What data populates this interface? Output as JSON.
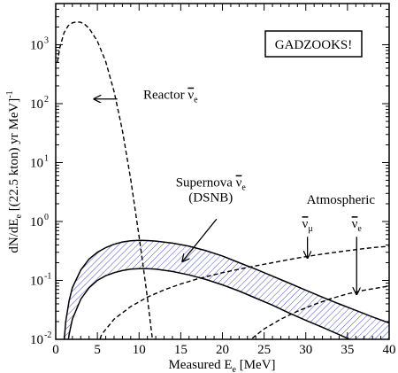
{
  "chart_data": {
    "type": "line",
    "x_axis": {
      "title_main": "Measured E",
      "title_sub": "e",
      "title_unit": "[MeV]",
      "range": [
        0,
        40
      ],
      "tick_values": [
        0,
        5,
        10,
        15,
        20,
        25,
        30,
        35,
        40
      ],
      "tick_labels": [
        "0",
        "5",
        "10",
        "15",
        "20",
        "25",
        "30",
        "35",
        "40"
      ],
      "minor_step": 1
    },
    "y_axis": {
      "title_part1": "dN/dE",
      "title_sub": "e",
      "title_part2": "[(22.5 kton) yr MeV]",
      "title_sup": "-1",
      "scale": "log",
      "range": [
        0.01,
        5000
      ],
      "tick_values": [
        0.01,
        0.1,
        1,
        10,
        100,
        1000
      ],
      "tick_bases": [
        "10",
        "10",
        "10",
        "10",
        "10",
        "10"
      ],
      "tick_exponents": [
        "-2",
        "-1",
        "0",
        "1",
        "2",
        "3"
      ]
    },
    "grid": false,
    "boxed_label": "GADZOOKS!",
    "series": [
      {
        "name": "Reactor ν̄e",
        "style": "dashed",
        "points": [
          [
            0.2,
            500
          ],
          [
            0.5,
            900
          ],
          [
            1,
            1600
          ],
          [
            1.5,
            2100
          ],
          [
            2,
            2350
          ],
          [
            2.5,
            2450
          ],
          [
            3,
            2400
          ],
          [
            3.5,
            2200
          ],
          [
            4,
            1900
          ],
          [
            5,
            1150
          ],
          [
            6,
            520
          ],
          [
            7,
            160
          ],
          [
            8,
            35
          ],
          [
            9,
            5.2
          ],
          [
            10,
            0.55
          ],
          [
            10.5,
            0.17
          ],
          [
            11,
            0.05
          ],
          [
            11.5,
            0.013
          ],
          [
            11.8,
            0.006
          ]
        ]
      },
      {
        "name": "Atmospheric ν̄μ",
        "style": "dashed",
        "points": [
          [
            4.8,
            0.006
          ],
          [
            5.5,
            0.012
          ],
          [
            7,
            0.022
          ],
          [
            9,
            0.036
          ],
          [
            11,
            0.052
          ],
          [
            13,
            0.069
          ],
          [
            15,
            0.087
          ],
          [
            17,
            0.106
          ],
          [
            20,
            0.135
          ],
          [
            23,
            0.166
          ],
          [
            26,
            0.2
          ],
          [
            29,
            0.24
          ],
          [
            32,
            0.28
          ],
          [
            35,
            0.32
          ],
          [
            38,
            0.36
          ],
          [
            40,
            0.38
          ]
        ]
      },
      {
        "name": "Atmospheric ν̄e",
        "style": "dashed",
        "points": [
          [
            22,
            0.0055
          ],
          [
            23,
            0.009
          ],
          [
            25,
            0.015
          ],
          [
            27,
            0.022
          ],
          [
            29,
            0.03
          ],
          [
            31,
            0.039
          ],
          [
            33,
            0.049
          ],
          [
            35,
            0.059
          ],
          [
            37,
            0.068
          ],
          [
            39,
            0.076
          ],
          [
            40,
            0.08
          ]
        ]
      },
      {
        "name": "Supernova ν̄e (DSNB)",
        "style": "hatched band",
        "upper": [
          [
            0.9,
            0.006
          ],
          [
            1.2,
            0.02
          ],
          [
            1.6,
            0.045
          ],
          [
            2,
            0.075
          ],
          [
            3,
            0.15
          ],
          [
            4,
            0.23
          ],
          [
            5,
            0.3
          ],
          [
            6,
            0.36
          ],
          [
            7,
            0.41
          ],
          [
            8,
            0.45
          ],
          [
            9,
            0.47
          ],
          [
            10,
            0.48
          ],
          [
            11,
            0.475
          ],
          [
            12,
            0.465
          ],
          [
            14,
            0.43
          ],
          [
            16,
            0.38
          ],
          [
            18,
            0.32
          ],
          [
            20,
            0.26
          ],
          [
            22,
            0.2
          ],
          [
            24,
            0.155
          ],
          [
            26,
            0.118
          ],
          [
            28,
            0.09
          ],
          [
            30,
            0.068
          ],
          [
            32,
            0.052
          ],
          [
            34,
            0.04
          ],
          [
            36,
            0.031
          ],
          [
            38,
            0.024
          ],
          [
            40,
            0.019
          ]
        ],
        "lower": [
          [
            1.3,
            0.006
          ],
          [
            1.6,
            0.012
          ],
          [
            2,
            0.022
          ],
          [
            3,
            0.048
          ],
          [
            4,
            0.075
          ],
          [
            5,
            0.1
          ],
          [
            6,
            0.12
          ],
          [
            7,
            0.135
          ],
          [
            8,
            0.147
          ],
          [
            9,
            0.155
          ],
          [
            10,
            0.158
          ],
          [
            11,
            0.158
          ],
          [
            12,
            0.155
          ],
          [
            14,
            0.142
          ],
          [
            16,
            0.124
          ],
          [
            18,
            0.104
          ],
          [
            20,
            0.084
          ],
          [
            22,
            0.066
          ],
          [
            24,
            0.05
          ],
          [
            26,
            0.038
          ],
          [
            28,
            0.028
          ],
          [
            30,
            0.021
          ],
          [
            32,
            0.016
          ],
          [
            34,
            0.012
          ],
          [
            36,
            0.009
          ],
          [
            38,
            0.0068
          ],
          [
            40,
            0.0052
          ]
        ]
      }
    ],
    "annotations": [
      {
        "lines": [
          {
            "main": "Reactor ",
            "bar": "ν",
            "sub": "e"
          }
        ],
        "anchor": "start",
        "text_at": [
          10.5,
          120
        ],
        "arrow_from": [
          7.4,
          120
        ],
        "arrow_to": [
          4.6,
          120
        ]
      },
      {
        "lines": [
          {
            "main": "Supernova ",
            "bar": "ν",
            "sub": "e"
          },
          {
            "main": "(DSNB)",
            "bar": "",
            "sub": ""
          }
        ],
        "anchor": "middle",
        "text_at": [
          18.6,
          3.9
        ],
        "arrow_from": [
          19.3,
          1.1
        ],
        "arrow_to": [
          15.2,
          0.21
        ]
      },
      {
        "lines": [
          {
            "main": "Atmospheric",
            "bar": "",
            "sub": ""
          }
        ],
        "anchor": "middle",
        "text_at": [
          34.2,
          2.0
        ],
        "arrow_from": null,
        "arrow_to": null
      },
      {
        "lines": [
          {
            "main": "",
            "bar": "ν",
            "sub": "μ"
          }
        ],
        "anchor": "middle",
        "text_at": [
          30.2,
          0.78
        ],
        "arrow_from": [
          30.2,
          0.55
        ],
        "arrow_to": [
          30.2,
          0.24
        ]
      },
      {
        "lines": [
          {
            "main": "",
            "bar": "ν",
            "sub": "e"
          }
        ],
        "anchor": "middle",
        "text_at": [
          36.1,
          0.78
        ],
        "arrow_from": [
          36.1,
          0.55
        ],
        "arrow_to": [
          36.1,
          0.058
        ]
      }
    ]
  }
}
